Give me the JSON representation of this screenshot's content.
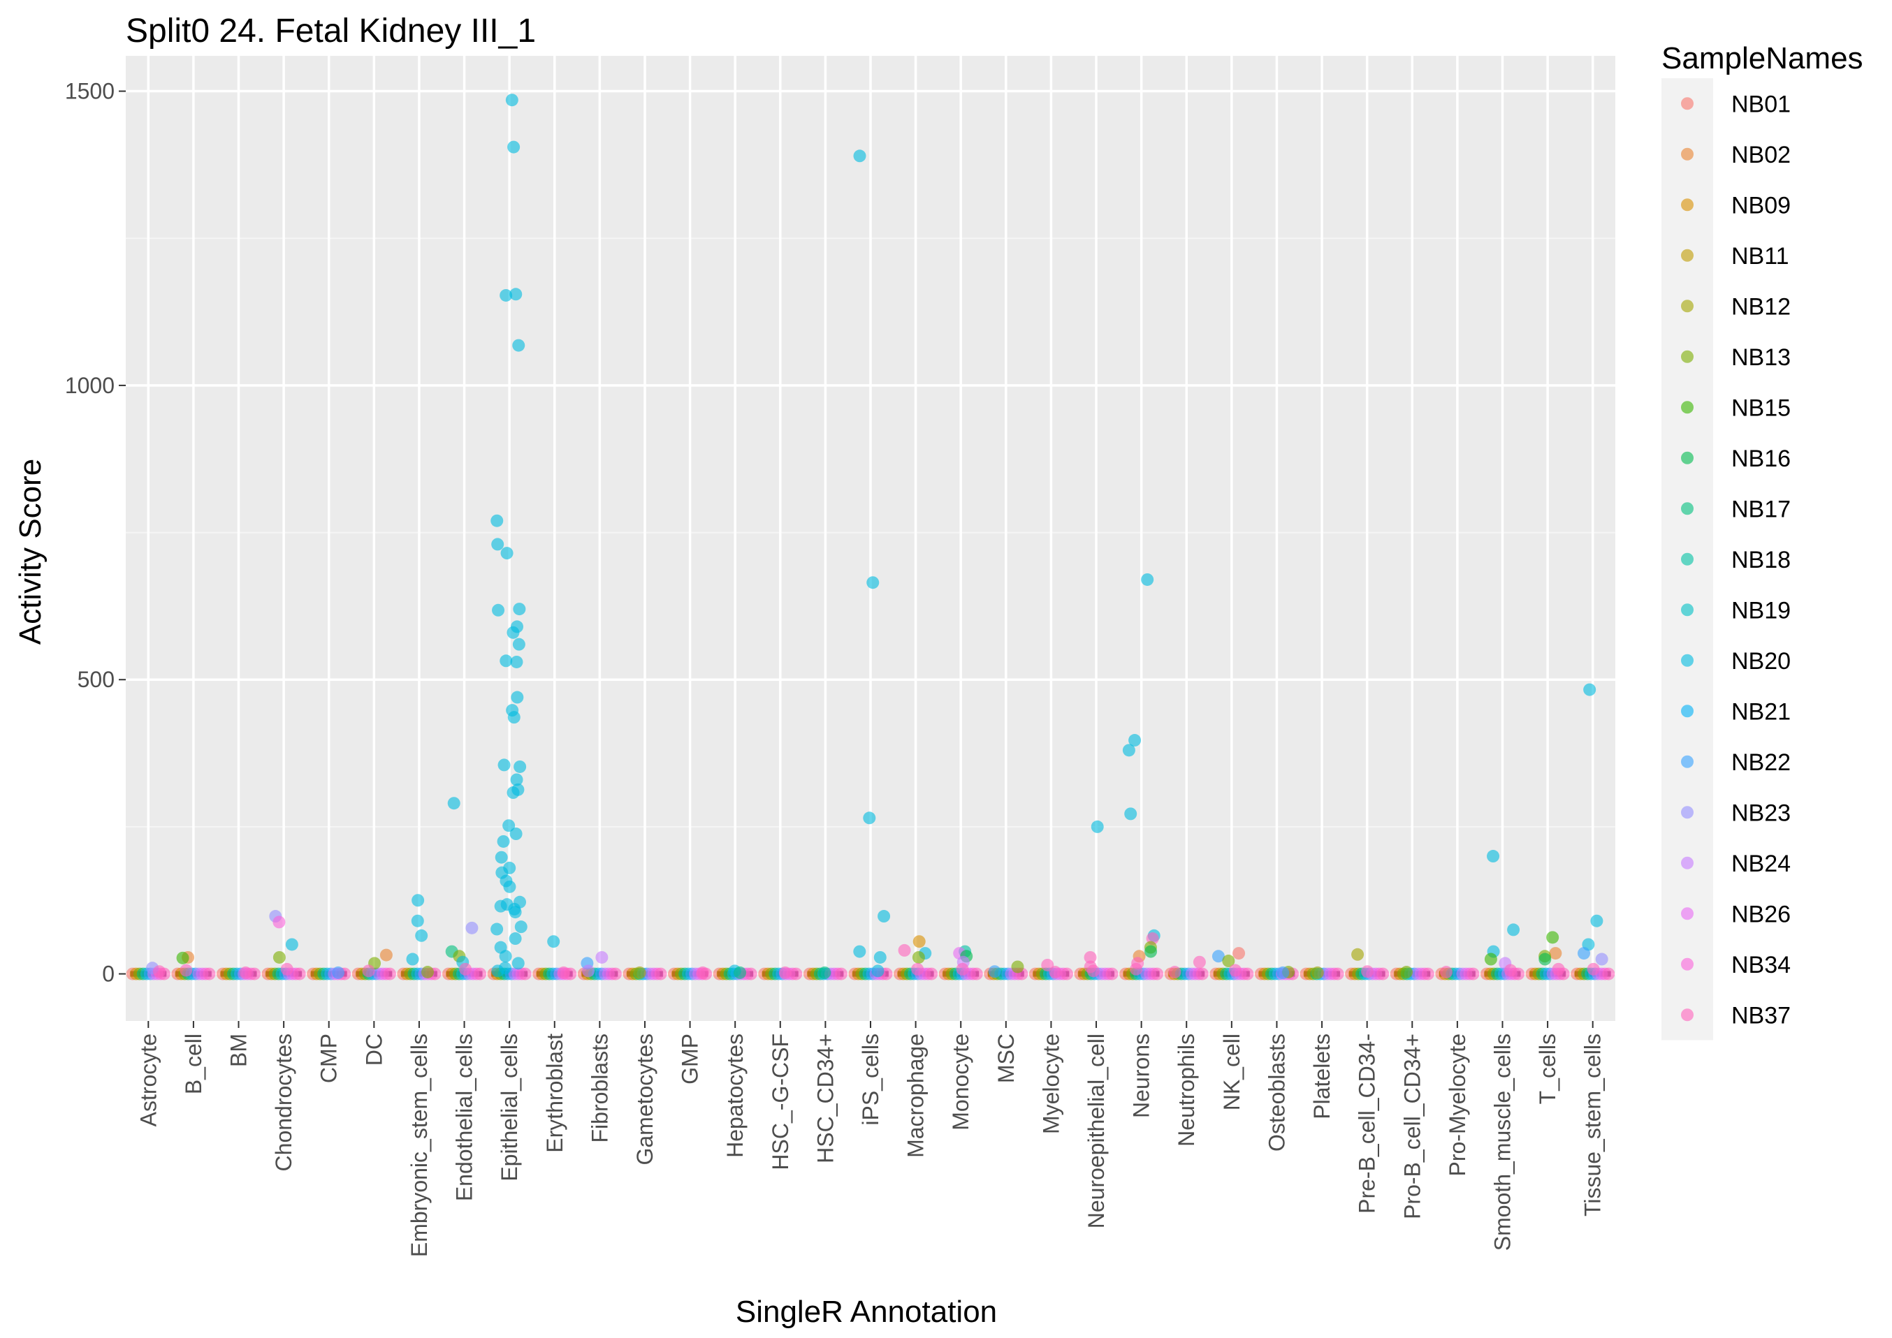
{
  "chart_data": {
    "type": "scatter",
    "title": "Split0 24. Fetal Kidney III_1",
    "xlabel": "SingleR Annotation",
    "ylabel": "Activity Score",
    "ylim": [
      -80,
      1560
    ],
    "yticks": [
      0,
      500,
      1000,
      1500
    ],
    "grid": true,
    "categories": [
      "Astrocyte",
      "B_cell",
      "BM",
      "Chondrocytes",
      "CMP",
      "DC",
      "Embryonic_stem_cells",
      "Endothelial_cells",
      "Epithelial_cells",
      "Erythroblast",
      "Fibroblasts",
      "Gametocytes",
      "GMP",
      "Hepatocytes",
      "HSC_-G-CSF",
      "HSC_CD34+",
      "iPS_cells",
      "Macrophage",
      "Monocyte",
      "MSC",
      "Myelocyte",
      "Neuroepithelial_cell",
      "Neurons",
      "Neutrophils",
      "NK_cell",
      "Osteoblasts",
      "Platelets",
      "Pre-B_cell_CD34-",
      "Pro-B_cell_CD34+",
      "Pro-Myelocyte",
      "Smooth_muscle_cells",
      "T_cells",
      "Tissue_stem_cells"
    ],
    "legend": {
      "title": "SampleNames",
      "position": "right",
      "entries": [
        {
          "name": "NB01",
          "color": "#F8766D"
        },
        {
          "name": "NB02",
          "color": "#EA8331"
        },
        {
          "name": "NB09",
          "color": "#D89000"
        },
        {
          "name": "NB11",
          "color": "#C09B00"
        },
        {
          "name": "NB12",
          "color": "#A3A500"
        },
        {
          "name": "NB13",
          "color": "#7CAE00"
        },
        {
          "name": "NB15",
          "color": "#39B600"
        },
        {
          "name": "NB16",
          "color": "#00BB4E"
        },
        {
          "name": "NB17",
          "color": "#00BF7D"
        },
        {
          "name": "NB18",
          "color": "#00C1A3"
        },
        {
          "name": "NB19",
          "color": "#00BFC4"
        },
        {
          "name": "NB20",
          "color": "#00BAE0"
        },
        {
          "name": "NB21",
          "color": "#00B0F6"
        },
        {
          "name": "NB22",
          "color": "#35A2FF"
        },
        {
          "name": "NB23",
          "color": "#9590FF"
        },
        {
          "name": "NB24",
          "color": "#C77CFF"
        },
        {
          "name": "NB26",
          "color": "#E76BF3"
        },
        {
          "name": "NB34",
          "color": "#FA62DB"
        },
        {
          "name": "NB37",
          "color": "#FF62BC"
        }
      ]
    },
    "points": [
      {
        "category": "Astrocyte",
        "sample": "NB23",
        "y": 10
      },
      {
        "category": "Astrocyte",
        "sample": "NB37",
        "y": 4
      },
      {
        "category": "B_cell",
        "sample": "NB02",
        "y": 28
      },
      {
        "category": "B_cell",
        "sample": "NB15",
        "y": 27
      },
      {
        "category": "B_cell",
        "sample": "NB37",
        "y": 6
      },
      {
        "category": "BM",
        "sample": "NB37",
        "y": 2
      },
      {
        "category": "Chondrocytes",
        "sample": "NB23",
        "y": 98
      },
      {
        "category": "Chondrocytes",
        "sample": "NB34",
        "y": 88
      },
      {
        "category": "Chondrocytes",
        "sample": "NB20",
        "y": 50
      },
      {
        "category": "Chondrocytes",
        "sample": "NB13",
        "y": 28
      },
      {
        "category": "Chondrocytes",
        "sample": "NB37",
        "y": 8
      },
      {
        "category": "CMP",
        "sample": "NB22",
        "y": 2
      },
      {
        "category": "DC",
        "sample": "NB02",
        "y": 32
      },
      {
        "category": "DC",
        "sample": "NB13",
        "y": 18
      },
      {
        "category": "DC",
        "sample": "NB37",
        "y": 5
      },
      {
        "category": "Embryonic_stem_cells",
        "sample": "NB20",
        "y": 125
      },
      {
        "category": "Embryonic_stem_cells",
        "sample": "NB20",
        "y": 90
      },
      {
        "category": "Embryonic_stem_cells",
        "sample": "NB20",
        "y": 65
      },
      {
        "category": "Embryonic_stem_cells",
        "sample": "NB20",
        "y": 25
      },
      {
        "category": "Embryonic_stem_cells",
        "sample": "NB13",
        "y": 3
      },
      {
        "category": "Endothelial_cells",
        "sample": "NB20",
        "y": 290
      },
      {
        "category": "Endothelial_cells",
        "sample": "NB23",
        "y": 78
      },
      {
        "category": "Endothelial_cells",
        "sample": "NB17",
        "y": 38
      },
      {
        "category": "Endothelial_cells",
        "sample": "NB13",
        "y": 30
      },
      {
        "category": "Endothelial_cells",
        "sample": "NB20",
        "y": 20
      },
      {
        "category": "Endothelial_cells",
        "sample": "NB37",
        "y": 8
      },
      {
        "category": "Epithelial_cells",
        "sample": "NB20",
        "y": 1485
      },
      {
        "category": "Epithelial_cells",
        "sample": "NB20",
        "y": 1405
      },
      {
        "category": "Epithelial_cells",
        "sample": "NB20",
        "y": 1155
      },
      {
        "category": "Epithelial_cells",
        "sample": "NB20",
        "y": 1153
      },
      {
        "category": "Epithelial_cells",
        "sample": "NB20",
        "y": 1068
      },
      {
        "category": "Epithelial_cells",
        "sample": "NB20",
        "y": 770
      },
      {
        "category": "Epithelial_cells",
        "sample": "NB20",
        "y": 730
      },
      {
        "category": "Epithelial_cells",
        "sample": "NB20",
        "y": 715
      },
      {
        "category": "Epithelial_cells",
        "sample": "NB20",
        "y": 620
      },
      {
        "category": "Epithelial_cells",
        "sample": "NB20",
        "y": 618
      },
      {
        "category": "Epithelial_cells",
        "sample": "NB20",
        "y": 590
      },
      {
        "category": "Epithelial_cells",
        "sample": "NB20",
        "y": 580
      },
      {
        "category": "Epithelial_cells",
        "sample": "NB20",
        "y": 560
      },
      {
        "category": "Epithelial_cells",
        "sample": "NB20",
        "y": 532
      },
      {
        "category": "Epithelial_cells",
        "sample": "NB20",
        "y": 530
      },
      {
        "category": "Epithelial_cells",
        "sample": "NB20",
        "y": 470
      },
      {
        "category": "Epithelial_cells",
        "sample": "NB20",
        "y": 448
      },
      {
        "category": "Epithelial_cells",
        "sample": "NB20",
        "y": 436
      },
      {
        "category": "Epithelial_cells",
        "sample": "NB20",
        "y": 355
      },
      {
        "category": "Epithelial_cells",
        "sample": "NB20",
        "y": 352
      },
      {
        "category": "Epithelial_cells",
        "sample": "NB20",
        "y": 330
      },
      {
        "category": "Epithelial_cells",
        "sample": "NB20",
        "y": 313
      },
      {
        "category": "Epithelial_cells",
        "sample": "NB20",
        "y": 308
      },
      {
        "category": "Epithelial_cells",
        "sample": "NB20",
        "y": 252
      },
      {
        "category": "Epithelial_cells",
        "sample": "NB20",
        "y": 238
      },
      {
        "category": "Epithelial_cells",
        "sample": "NB20",
        "y": 225
      },
      {
        "category": "Epithelial_cells",
        "sample": "NB20",
        "y": 198
      },
      {
        "category": "Epithelial_cells",
        "sample": "NB20",
        "y": 180
      },
      {
        "category": "Epithelial_cells",
        "sample": "NB20",
        "y": 172
      },
      {
        "category": "Epithelial_cells",
        "sample": "NB20",
        "y": 158
      },
      {
        "category": "Epithelial_cells",
        "sample": "NB20",
        "y": 148
      },
      {
        "category": "Epithelial_cells",
        "sample": "NB20",
        "y": 122
      },
      {
        "category": "Epithelial_cells",
        "sample": "NB20",
        "y": 118
      },
      {
        "category": "Epithelial_cells",
        "sample": "NB20",
        "y": 115
      },
      {
        "category": "Epithelial_cells",
        "sample": "NB20",
        "y": 110
      },
      {
        "category": "Epithelial_cells",
        "sample": "NB20",
        "y": 105
      },
      {
        "category": "Epithelial_cells",
        "sample": "NB20",
        "y": 80
      },
      {
        "category": "Epithelial_cells",
        "sample": "NB20",
        "y": 76
      },
      {
        "category": "Epithelial_cells",
        "sample": "NB20",
        "y": 60
      },
      {
        "category": "Epithelial_cells",
        "sample": "NB20",
        "y": 45
      },
      {
        "category": "Epithelial_cells",
        "sample": "NB20",
        "y": 30
      },
      {
        "category": "Epithelial_cells",
        "sample": "NB20",
        "y": 18
      },
      {
        "category": "Epithelial_cells",
        "sample": "NB20",
        "y": 10
      },
      {
        "category": "Epithelial_cells",
        "sample": "NB20",
        "y": 5
      },
      {
        "category": "Erythroblast",
        "sample": "NB20",
        "y": 55
      },
      {
        "category": "Erythroblast",
        "sample": "NB37",
        "y": 2
      },
      {
        "category": "Fibroblasts",
        "sample": "NB24",
        "y": 28
      },
      {
        "category": "Fibroblasts",
        "sample": "NB22",
        "y": 18
      },
      {
        "category": "Fibroblasts",
        "sample": "NB24",
        "y": 5
      },
      {
        "category": "Gametocytes",
        "sample": "NB12",
        "y": 2
      },
      {
        "category": "GMP",
        "sample": "NB37",
        "y": 2
      },
      {
        "category": "Hepatocytes",
        "sample": "NB20",
        "y": 5
      },
      {
        "category": "Hepatocytes",
        "sample": "NB17",
        "y": 2
      },
      {
        "category": "HSC_-G-CSF",
        "sample": "NB37",
        "y": 2
      },
      {
        "category": "HSC_CD34+",
        "sample": "NB17",
        "y": 2
      },
      {
        "category": "iPS_cells",
        "sample": "NB20",
        "y": 1390
      },
      {
        "category": "iPS_cells",
        "sample": "NB20",
        "y": 665
      },
      {
        "category": "iPS_cells",
        "sample": "NB20",
        "y": 265
      },
      {
        "category": "iPS_cells",
        "sample": "NB20",
        "y": 98
      },
      {
        "category": "iPS_cells",
        "sample": "NB20",
        "y": 38
      },
      {
        "category": "iPS_cells",
        "sample": "NB20",
        "y": 28
      },
      {
        "category": "iPS_cells",
        "sample": "NB20",
        "y": 5
      },
      {
        "category": "Macrophage",
        "sample": "NB09",
        "y": 55
      },
      {
        "category": "Macrophage",
        "sample": "NB37",
        "y": 40
      },
      {
        "category": "Macrophage",
        "sample": "NB20",
        "y": 35
      },
      {
        "category": "Macrophage",
        "sample": "NB13",
        "y": 28
      },
      {
        "category": "Macrophage",
        "sample": "NB37",
        "y": 8
      },
      {
        "category": "Monocyte",
        "sample": "NB18",
        "y": 38
      },
      {
        "category": "Monocyte",
        "sample": "NB26",
        "y": 35
      },
      {
        "category": "Monocyte",
        "sample": "NB16",
        "y": 30
      },
      {
        "category": "Monocyte",
        "sample": "NB24",
        "y": 20
      },
      {
        "category": "Monocyte",
        "sample": "NB37",
        "y": 8
      },
      {
        "category": "MSC",
        "sample": "NB13",
        "y": 12
      },
      {
        "category": "MSC",
        "sample": "NB22",
        "y": 4
      },
      {
        "category": "Myelocyte",
        "sample": "NB37",
        "y": 15
      },
      {
        "category": "Myelocyte",
        "sample": "NB37",
        "y": 3
      },
      {
        "category": "Neuroepithelial_cell",
        "sample": "NB20",
        "y": 250
      },
      {
        "category": "Neuroepithelial_cell",
        "sample": "NB37",
        "y": 28
      },
      {
        "category": "Neuroepithelial_cell",
        "sample": "NB37",
        "y": 12
      },
      {
        "category": "Neuroepithelial_cell",
        "sample": "NB37",
        "y": 5
      },
      {
        "category": "Neurons",
        "sample": "NB20",
        "y": 670
      },
      {
        "category": "Neurons",
        "sample": "NB20",
        "y": 397
      },
      {
        "category": "Neurons",
        "sample": "NB20",
        "y": 380
      },
      {
        "category": "Neurons",
        "sample": "NB20",
        "y": 272
      },
      {
        "category": "Neurons",
        "sample": "NB20",
        "y": 65
      },
      {
        "category": "Neurons",
        "sample": "NB37",
        "y": 60
      },
      {
        "category": "Neurons",
        "sample": "NB13",
        "y": 45
      },
      {
        "category": "Neurons",
        "sample": "NB16",
        "y": 38
      },
      {
        "category": "Neurons",
        "sample": "NB02",
        "y": 30
      },
      {
        "category": "Neurons",
        "sample": "NB37",
        "y": 18
      },
      {
        "category": "Neurons",
        "sample": "NB37",
        "y": 8
      },
      {
        "category": "Neutrophils",
        "sample": "NB37",
        "y": 20
      },
      {
        "category": "Neutrophils",
        "sample": "NB37",
        "y": 3
      },
      {
        "category": "NK_cell",
        "sample": "NB01",
        "y": 35
      },
      {
        "category": "NK_cell",
        "sample": "NB22",
        "y": 30
      },
      {
        "category": "NK_cell",
        "sample": "NB13",
        "y": 22
      },
      {
        "category": "NK_cell",
        "sample": "NB37",
        "y": 6
      },
      {
        "category": "Osteoblasts",
        "sample": "NB13",
        "y": 3
      },
      {
        "category": "Osteoblasts",
        "sample": "NB22",
        "y": 2
      },
      {
        "category": "Platelets",
        "sample": "NB12",
        "y": 2
      },
      {
        "category": "Pre-B_cell_CD34-",
        "sample": "NB12",
        "y": 33
      },
      {
        "category": "Pre-B_cell_CD34-",
        "sample": "NB37",
        "y": 4
      },
      {
        "category": "Pro-B_cell_CD34+",
        "sample": "NB13",
        "y": 3
      },
      {
        "category": "Pro-Myelocyte",
        "sample": "NB37",
        "y": 3
      },
      {
        "category": "Smooth_muscle_cells",
        "sample": "NB20",
        "y": 200
      },
      {
        "category": "Smooth_muscle_cells",
        "sample": "NB20",
        "y": 75
      },
      {
        "category": "Smooth_muscle_cells",
        "sample": "NB20",
        "y": 38
      },
      {
        "category": "Smooth_muscle_cells",
        "sample": "NB15",
        "y": 25
      },
      {
        "category": "Smooth_muscle_cells",
        "sample": "NB24",
        "y": 18
      },
      {
        "category": "Smooth_muscle_cells",
        "sample": "NB37",
        "y": 6
      },
      {
        "category": "T_cells",
        "sample": "NB15",
        "y": 62
      },
      {
        "category": "T_cells",
        "sample": "NB02",
        "y": 35
      },
      {
        "category": "T_cells",
        "sample": "NB13",
        "y": 30
      },
      {
        "category": "T_cells",
        "sample": "NB16",
        "y": 25
      },
      {
        "category": "T_cells",
        "sample": "NB37",
        "y": 8
      },
      {
        "category": "Tissue_stem_cells",
        "sample": "NB20",
        "y": 483
      },
      {
        "category": "Tissue_stem_cells",
        "sample": "NB20",
        "y": 90
      },
      {
        "category": "Tissue_stem_cells",
        "sample": "NB20",
        "y": 50
      },
      {
        "category": "Tissue_stem_cells",
        "sample": "NB22",
        "y": 35
      },
      {
        "category": "Tissue_stem_cells",
        "sample": "NB23",
        "y": 25
      },
      {
        "category": "Tissue_stem_cells",
        "sample": "NB37",
        "y": 8
      }
    ]
  }
}
